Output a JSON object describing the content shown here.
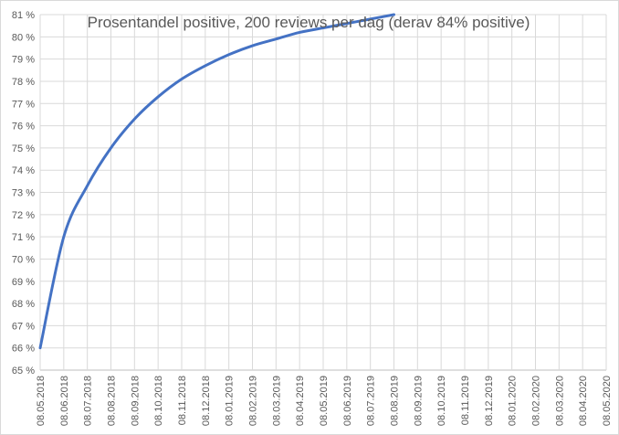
{
  "chart_data": {
    "type": "line",
    "title": "Prosentandel positive, 200 reviews per dag (derav 84% positive)",
    "xlabel": "",
    "ylabel": "",
    "ylim": [
      0.65,
      0.81
    ],
    "y_tick_labels": [
      "65 %",
      "66 %",
      "67 %",
      "68 %",
      "69 %",
      "70 %",
      "71 %",
      "72 %",
      "73 %",
      "74 %",
      "75 %",
      "76 %",
      "77 %",
      "78 %",
      "79 %",
      "80 %",
      "81 %"
    ],
    "x_tick_labels": [
      "08.05.2018",
      "08.06.2018",
      "08.07.2018",
      "08.08.2018",
      "08.09.2018",
      "08.10.2018",
      "08.11.2018",
      "08.12.2018",
      "08.01.2019",
      "08.02.2019",
      "08.03.2019",
      "08.04.2019",
      "08.05.2019",
      "08.06.2019",
      "08.07.2019",
      "08.08.2019",
      "08.09.2019",
      "08.10.2019",
      "08.11.2019",
      "08.12.2019",
      "08.01.2020",
      "08.02.2020",
      "08.03.2020",
      "08.04.2020",
      "08.05.2020"
    ],
    "grid": true,
    "series": [
      {
        "color": "#4472c4",
        "x": [
          "08.05.2018",
          "08.06.2018",
          "08.07.2018",
          "08.08.2018",
          "08.09.2018",
          "08.10.2018",
          "08.11.2018",
          "08.12.2018",
          "08.01.2019",
          "08.02.2019",
          "08.03.2019",
          "08.04.2019",
          "08.05.2019",
          "08.06.2019",
          "08.07.2019",
          "08.08.2019"
        ],
        "values": [
          0.66,
          0.71,
          0.733,
          0.75,
          0.763,
          0.773,
          0.781,
          0.787,
          0.792,
          0.796,
          0.799,
          0.802,
          0.804,
          0.806,
          0.808,
          0.81
        ]
      }
    ]
  }
}
